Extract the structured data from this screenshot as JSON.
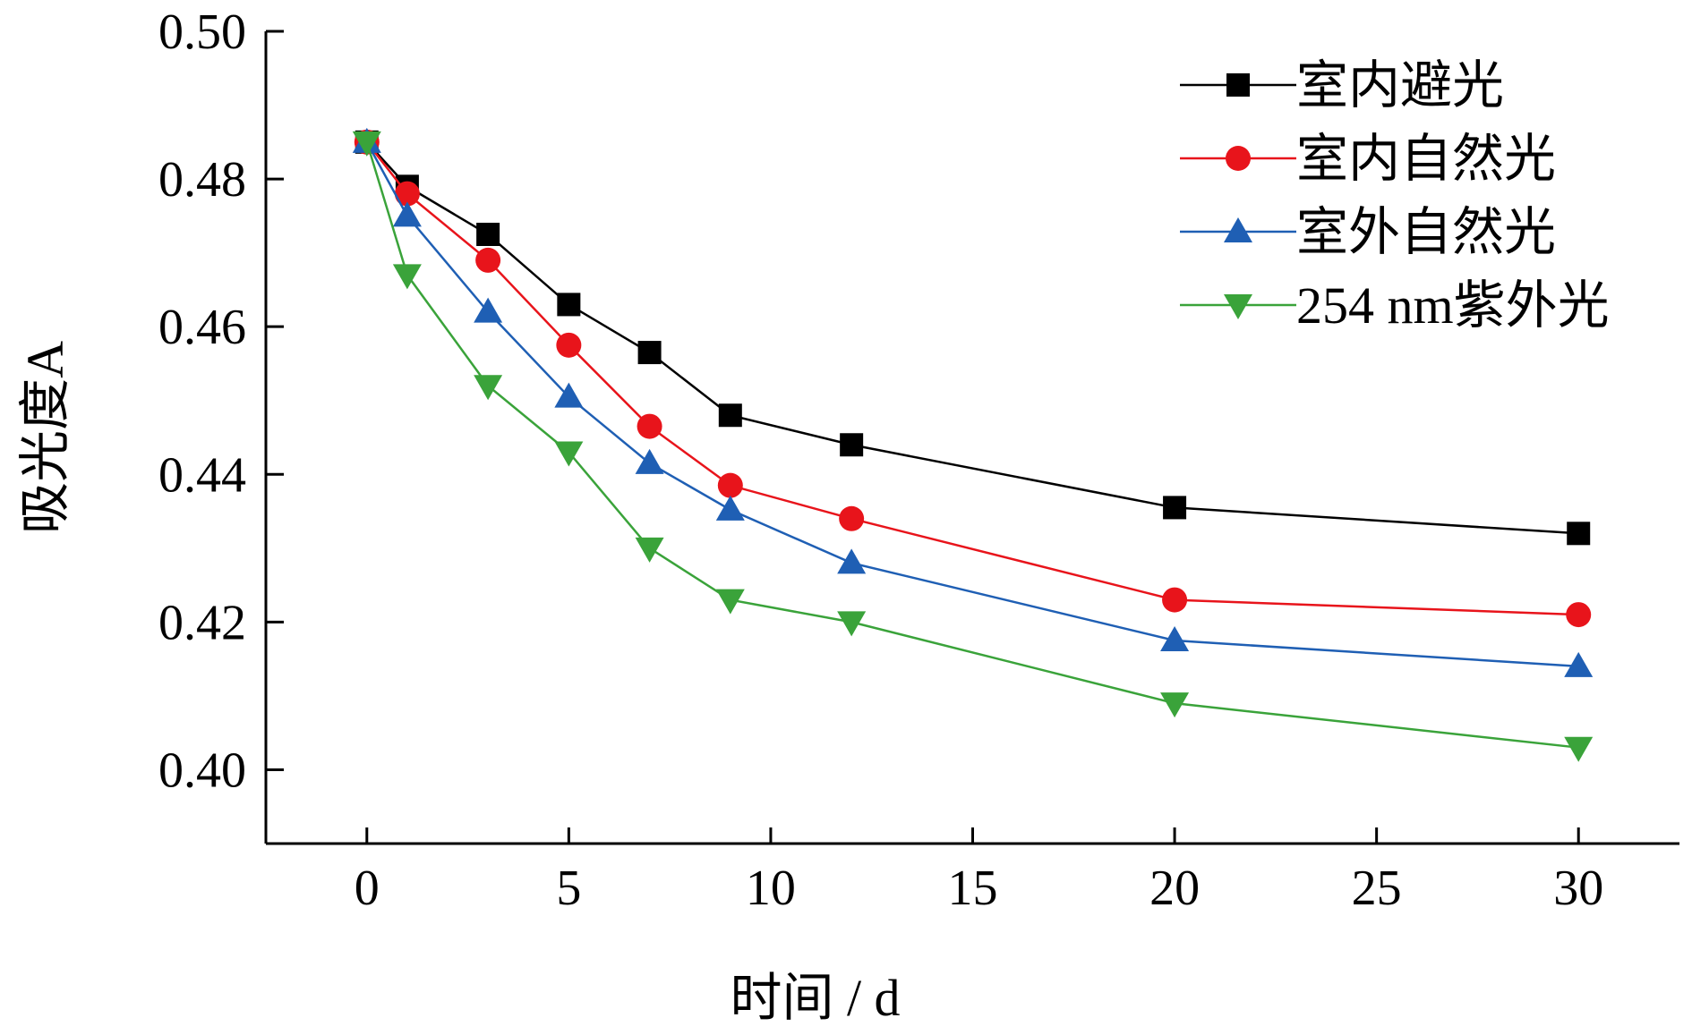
{
  "chart_data": {
    "type": "line",
    "title": "",
    "xlabel": "时间 / d",
    "ylabel": "吸光度A",
    "xlim": [
      -2.5,
      32.5
    ],
    "ylim": [
      0.39,
      0.5
    ],
    "xticks": [
      0,
      5,
      10,
      15,
      20,
      25,
      30
    ],
    "xtick_labels": [
      "0",
      "5",
      "10",
      "15",
      "20",
      "25",
      "30"
    ],
    "yticks": [
      0.4,
      0.42,
      0.44,
      0.46,
      0.48,
      0.5
    ],
    "ytick_labels": [
      "0.40",
      "0.42",
      "0.44",
      "0.46",
      "0.48",
      "0.50"
    ],
    "grid": false,
    "legend_position": "top-right",
    "x": [
      0,
      1,
      3,
      5,
      7,
      9,
      12,
      20,
      30
    ],
    "series": [
      {
        "name": "室内避光",
        "color": "#000000",
        "marker": "square",
        "values": [
          0.485,
          0.479,
          0.4725,
          0.463,
          0.4565,
          0.448,
          0.444,
          0.4355,
          0.432
        ]
      },
      {
        "name": "室内自然光",
        "color": "#e8141b",
        "marker": "circle",
        "values": [
          0.485,
          0.478,
          0.469,
          0.4575,
          0.4465,
          0.4385,
          0.434,
          0.423,
          0.421
        ]
      },
      {
        "name": "室外自然光",
        "color": "#1f5fb4",
        "marker": "triangle-up",
        "values": [
          0.485,
          0.475,
          0.462,
          0.4505,
          0.4415,
          0.4352,
          0.428,
          0.4175,
          0.414
        ]
      },
      {
        "name": "254 nm紫外光",
        "color": "#3aa33a",
        "marker": "triangle-down",
        "values": [
          0.485,
          0.467,
          0.452,
          0.443,
          0.43,
          0.423,
          0.42,
          0.409,
          0.403
        ]
      }
    ]
  }
}
